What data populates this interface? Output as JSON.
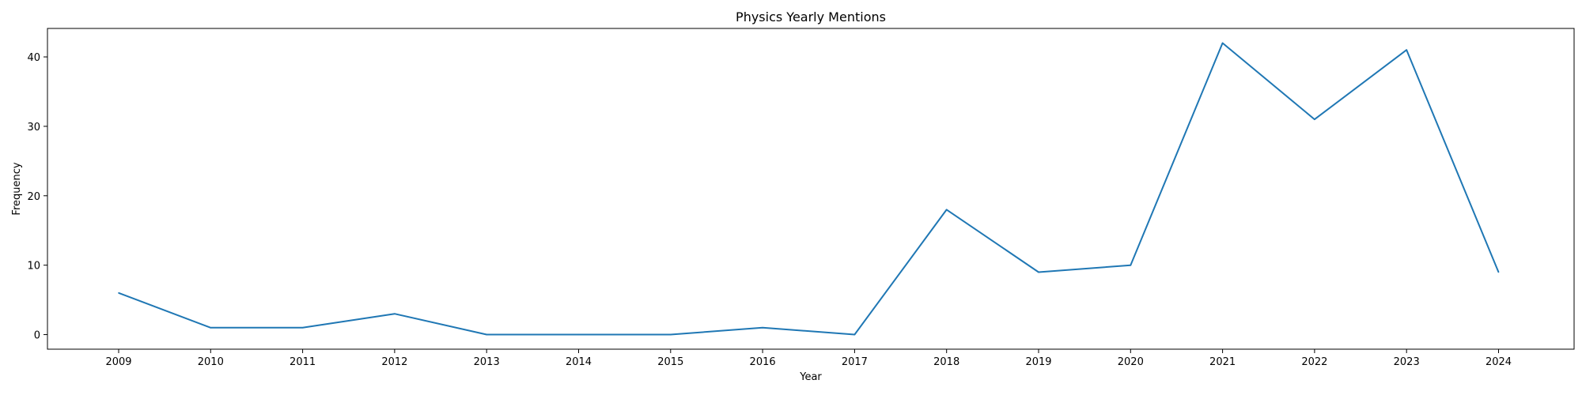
{
  "chart_data": {
    "type": "line",
    "title": "Physics Yearly Mentions",
    "xlabel": "Year",
    "ylabel": "Frequency",
    "x": [
      "2009",
      "2010",
      "2011",
      "2012",
      "2013",
      "2014",
      "2015",
      "2016",
      "2017",
      "2018",
      "2019",
      "2020",
      "2021",
      "2022",
      "2023",
      "2024"
    ],
    "series": [
      {
        "values": [
          6,
          1,
          1,
          3,
          0,
          0,
          0,
          1,
          0,
          18,
          9,
          10,
          42,
          31,
          41,
          9
        ]
      }
    ],
    "yticks": [
      0,
      10,
      20,
      30,
      40
    ],
    "ylim": [
      -2.1,
      44.1
    ],
    "grid": false,
    "line_color": "#1f77b4"
  }
}
